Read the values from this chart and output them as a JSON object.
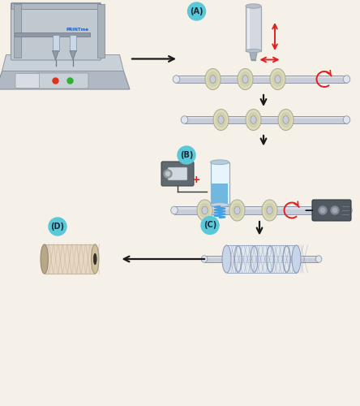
{
  "background_color": "#f5f0e8",
  "fig_width": 4.44,
  "fig_height": 5.0,
  "dpi": 100,
  "label_A": "(A)",
  "label_B": "(B)",
  "label_C": "(C)",
  "label_D": "(D)",
  "label_color": "#5bc8d8",
  "label_fontsize": 7,
  "arrow_color": "#1a1a1a",
  "red_color": "#e02020",
  "rod_light": "#c8cdd8",
  "rod_dark": "#9098a8",
  "rod_highlight": "#e0e4ec",
  "ring_outer": "#dddcc0",
  "ring_inner": "#c8cdd8",
  "syringe_clear": "#e8f4fc",
  "syringe_liquid": "#70b8e0",
  "coil_color": "#40a0e8",
  "thread_body": "#e8d8c4",
  "thread_dark": "#c8b898",
  "device_body": "#606870",
  "device_light": "#808890",
  "collector_body": "#505860",
  "wire_color": "#303838"
}
